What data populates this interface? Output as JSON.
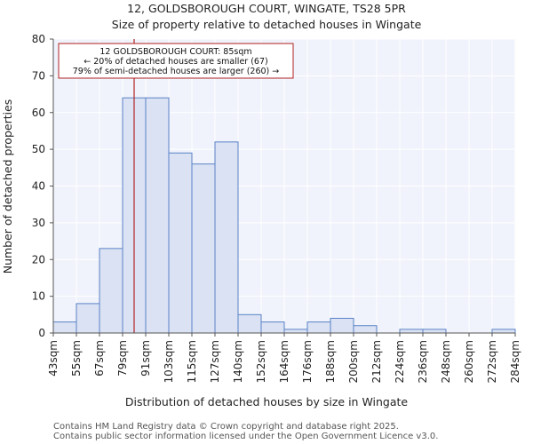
{
  "chart_data": {
    "type": "bar",
    "title": "12, GOLDSBOROUGH COURT, WINGATE, TS28 5PR",
    "subtitle": "Size of property relative to detached houses in Wingate",
    "xlabel": "Distribution of detached houses by size in Wingate",
    "ylabel": "Number of detached properties",
    "ylim": [
      0,
      80
    ],
    "yticks": [
      0,
      10,
      20,
      30,
      40,
      50,
      60,
      70,
      80
    ],
    "x_tick_labels": [
      "43sqm",
      "55sqm",
      "67sqm",
      "79sqm",
      "91sqm",
      "103sqm",
      "115sqm",
      "127sqm",
      "140sqm",
      "152sqm",
      "164sqm",
      "176sqm",
      "188sqm",
      "200sqm",
      "212sqm",
      "224sqm",
      "236sqm",
      "248sqm",
      "260sqm",
      "272sqm",
      "284sqm"
    ],
    "values": [
      3,
      8,
      23,
      64,
      64,
      49,
      46,
      52,
      5,
      3,
      1,
      3,
      4,
      2,
      0,
      1,
      1,
      0,
      0,
      1
    ],
    "marker": {
      "value_sqm": 85,
      "position_bins": 3.5,
      "color": "#b22222"
    },
    "annotation": {
      "line1": "12 GOLDSBOROUGH COURT: 85sqm",
      "line2": "← 20% of detached houses are smaller (67)",
      "line3": "79% of semi-detached houses are larger (260) →"
    },
    "grid": true,
    "colors": {
      "bar_fill": "#dae2f4",
      "bar_edge": "#5b83c6",
      "plot_bg": "#f0f3fb",
      "grid": "#ffffff"
    }
  },
  "footer": {
    "line1": "Contains HM Land Registry data © Crown copyright and database right 2025.",
    "line2": "Contains public sector information licensed under the Open Government Licence v3.0."
  }
}
